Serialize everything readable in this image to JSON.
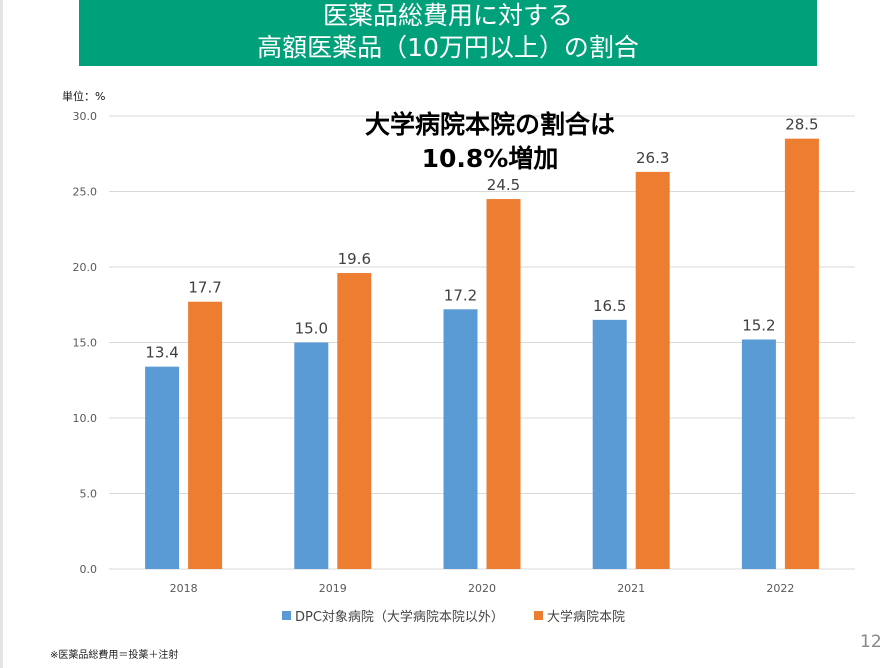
{
  "slide": {
    "title_line1": "医薬品総費用に対する",
    "title_line2": "高額医薬品（10万円以上）の割合",
    "unit_label": "単位：%",
    "callout_line1": "大学病院本院の割合は",
    "callout_line2": "10.8%増加",
    "footnote": "※医薬品総費用＝投薬＋注射",
    "page_number": "12",
    "colors": {
      "title_bg": "#00a07a",
      "series_dpc": "#5b9bd5",
      "series_univ": "#ed7d31"
    }
  },
  "chart_data": {
    "type": "bar",
    "title": "医薬品総費用に対する高額医薬品（10万円以上）の割合",
    "xlabel": "",
    "ylabel": "単位：%",
    "ylim": [
      0,
      30
    ],
    "yticks": [
      "0.0",
      "5.0",
      "10.0",
      "15.0",
      "20.0",
      "25.0",
      "30.0"
    ],
    "grid": true,
    "legend_position": "bottom",
    "categories": [
      "2018",
      "2019",
      "2020",
      "2021",
      "2022"
    ],
    "series": [
      {
        "name": "DPC対象病院（大学病院本院以外）",
        "color": "#5b9bd5",
        "values": [
          13.4,
          15.0,
          17.2,
          16.5,
          15.2
        ],
        "labels": [
          "13.4",
          "15.0",
          "17.2",
          "16.5",
          "15.2"
        ]
      },
      {
        "name": "大学病院本院",
        "color": "#ed7d31",
        "values": [
          17.7,
          19.6,
          24.5,
          26.3,
          28.5
        ],
        "labels": [
          "17.7",
          "19.6",
          "24.5",
          "26.3",
          "28.5"
        ]
      }
    ],
    "annotation": "大学病院本院の割合は10.8%増加"
  }
}
